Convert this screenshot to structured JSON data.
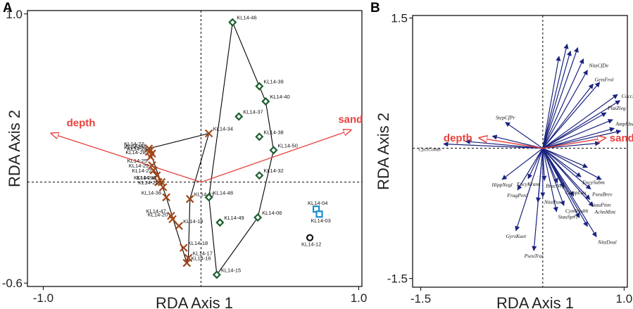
{
  "chart_data": [
    {
      "type": "scatter",
      "panel": "A",
      "xlabel": "RDA Axis 1",
      "ylabel": "RDA Axis 2",
      "xlim": [
        -1.1,
        1.02
      ],
      "ylim": [
        -0.62,
        1.02
      ],
      "xticks": [
        {
          "v": -1.0,
          "label": "-1.0"
        },
        {
          "v": 1.0,
          "label": "1.0"
        }
      ],
      "yticks": [
        {
          "v": 1.0,
          "label": "1.0"
        },
        {
          "v": -0.6,
          "label": "-0.6"
        }
      ],
      "groups": [
        {
          "name": "group-x",
          "marker": "x",
          "color": "#a0481c",
          "points": [
            {
              "label": "KL14-27",
              "x": -0.33,
              "y": 0.2
            },
            {
              "label": "KL14-43",
              "x": -0.32,
              "y": 0.19
            },
            {
              "label": "KL14-45",
              "x": -0.33,
              "y": 0.18
            },
            {
              "label": "KL14-26",
              "x": -0.31,
              "y": 0.17
            },
            {
              "label": "KL14-28",
              "x": -0.32,
              "y": 0.15
            },
            {
              "label": "KL14-25",
              "x": -0.31,
              "y": 0.1
            },
            {
              "label": "KL14-29",
              "x": -0.3,
              "y": 0.07
            },
            {
              "label": "KL14-22",
              "x": -0.28,
              "y": 0.04
            },
            {
              "label": "KL14-30",
              "x": -0.25,
              "y": 0.0
            },
            {
              "label": "KL14-2x",
              "x": -0.27,
              "y": 0.0
            },
            {
              "label": "KL14-21",
              "x": -0.24,
              "y": -0.03
            },
            {
              "label": "KL14-36",
              "x": -0.22,
              "y": -0.09
            },
            {
              "label": "KL14-31",
              "x": -0.07,
              "y": -0.1
            },
            {
              "label": "KL14-47",
              "x": -0.19,
              "y": -0.2
            },
            {
              "label": "KL14-20",
              "x": -0.18,
              "y": -0.22
            },
            {
              "label": "KL14-19",
              "x": -0.14,
              "y": -0.26
            },
            {
              "label": "KL14-18",
              "x": -0.11,
              "y": -0.39
            },
            {
              "label": "KL14-17",
              "x": -0.08,
              "y": -0.45
            },
            {
              "label": "KL14-16",
              "x": -0.09,
              "y": -0.48
            },
            {
              "label": "KL14-34",
              "x": 0.05,
              "y": 0.29
            }
          ]
        },
        {
          "name": "group-diamond",
          "marker": "diamond",
          "color": "#1b5e2e",
          "points": [
            {
              "label": "KL14-46",
              "x": 0.2,
              "y": 0.95
            },
            {
              "label": "KL14-39",
              "x": 0.37,
              "y": 0.57
            },
            {
              "label": "KL14-40",
              "x": 0.41,
              "y": 0.48
            },
            {
              "label": "KL14-37",
              "x": 0.24,
              "y": 0.39
            },
            {
              "label": "KL14-38",
              "x": 0.37,
              "y": 0.27
            },
            {
              "label": "KL14-50",
              "x": 0.46,
              "y": 0.19
            },
            {
              "label": "KL14-32",
              "x": 0.37,
              "y": 0.04
            },
            {
              "label": "KL14-48",
              "x": 0.05,
              "y": -0.09
            },
            {
              "label": "KL14-49",
              "x": 0.12,
              "y": -0.24
            },
            {
              "label": "KL14-06",
              "x": 0.36,
              "y": -0.21
            },
            {
              "label": "KL14-15",
              "x": 0.1,
              "y": -0.55
            }
          ]
        },
        {
          "name": "group-square",
          "marker": "square",
          "color": "#1a8fd1",
          "points": [
            {
              "label": "KL14-04",
              "x": 0.73,
              "y": -0.16
            },
            {
              "label": "KL14-03",
              "x": 0.75,
              "y": -0.19
            }
          ]
        },
        {
          "name": "group-circle",
          "marker": "circle",
          "color": "#111111",
          "points": [
            {
              "label": "KL14-12",
              "x": 0.69,
              "y": -0.33
            }
          ]
        }
      ],
      "hulls": [
        {
          "name": "hull-x",
          "labels": [
            "KL14-34",
            "KL14-31",
            "KL14-17",
            "KL14-16",
            "KL14-36",
            "KL14-27"
          ]
        },
        {
          "name": "hull-diamond",
          "labels": [
            "KL14-46",
            "KL14-40",
            "KL14-50",
            "KL14-06",
            "KL14-15",
            "KL14-48"
          ]
        }
      ],
      "env_vectors": [
        {
          "label": "depth",
          "x": -0.95,
          "y": 0.29
        },
        {
          "label": "sand",
          "x": 0.95,
          "y": 0.31
        }
      ]
    },
    {
      "type": "scatter",
      "panel": "B",
      "xlabel": "RDA Axis 1",
      "ylabel": "RDA Axis 2",
      "xlim": [
        -1.6,
        1.04
      ],
      "ylim": [
        -1.6,
        1.53
      ],
      "xticks": [
        {
          "v": -1.5,
          "label": "-1.5"
        },
        {
          "v": 1.0,
          "label": "1.0"
        }
      ],
      "yticks": [
        {
          "v": 1.5,
          "label": "1.5"
        },
        {
          "v": -1.5,
          "label": "-1.5"
        }
      ],
      "env_vectors": [
        {
          "label": "depth",
          "x": -0.78,
          "y": 0.12
        },
        {
          "label": "sand",
          "x": 0.77,
          "y": 0.12
        }
      ],
      "species_vectors": [
        {
          "label": "NitzCfDe",
          "x": 0.55,
          "y": 0.9
        },
        {
          "label": "GeisFrol",
          "x": 0.62,
          "y": 0.74
        },
        {
          "label": "CoccPlac",
          "x": 0.95,
          "y": 0.55
        },
        {
          "label": "PlatZieg",
          "x": 0.78,
          "y": 0.41
        },
        {
          "label": "AmphInds",
          "x": 0.88,
          "y": 0.23
        },
        {
          "label": "StepCfPr",
          "x": -0.46,
          "y": 0.3
        },
        {
          "label": "CyclComn",
          "x": -1.22,
          "y": 0.05
        },
        {
          "label": "HippNegl",
          "x": -0.5,
          "y": -0.36
        },
        {
          "label": "EncyKram",
          "x": -0.18,
          "y": -0.35
        },
        {
          "label": "FragPerd",
          "x": -0.31,
          "y": -0.48
        },
        {
          "label": "BracNeg",
          "x": 0.02,
          "y": -0.37
        },
        {
          "label": "EncySubm",
          "x": 0.47,
          "y": -0.33
        },
        {
          "label": "PseuBrev",
          "x": 0.59,
          "y": -0.47
        },
        {
          "label": "CampLau",
          "x": 0.26,
          "y": -0.45
        },
        {
          "label": "StauPinn",
          "x": 0.58,
          "y": -0.59
        },
        {
          "label": "AchnMint",
          "x": 0.62,
          "y": -0.67
        },
        {
          "label": "NitzPus",
          "x": 0.0,
          "y": -0.56
        },
        {
          "label": "CymbSubh",
          "x": 0.26,
          "y": -0.66
        },
        {
          "label": "StauSp#1",
          "x": 0.17,
          "y": -0.73
        },
        {
          "label": "GyrsKuet",
          "x": -0.33,
          "y": -0.95
        },
        {
          "label": "PseuTrai",
          "x": -0.11,
          "y": -1.18
        },
        {
          "label": "NitzDeal",
          "x": 0.66,
          "y": -1.02
        }
      ],
      "unlabeled_vectors": [
        {
          "x": 0.3,
          "y": 1.2
        },
        {
          "x": 0.34,
          "y": 1.12
        },
        {
          "x": 0.2,
          "y": 1.06
        },
        {
          "x": 0.43,
          "y": 1.16
        },
        {
          "x": 0.5,
          "y": 1.03
        },
        {
          "x": 0.7,
          "y": 0.76
        },
        {
          "x": 0.92,
          "y": 0.62
        },
        {
          "x": 0.86,
          "y": 0.33
        },
        {
          "x": 0.96,
          "y": 0.2
        },
        {
          "x": 0.7,
          "y": 0.06
        },
        {
          "x": -0.95,
          "y": 0.08
        },
        {
          "x": -0.62,
          "y": 0.14
        },
        {
          "x": 0.55,
          "y": -0.22
        },
        {
          "x": 0.72,
          "y": -0.36
        },
        {
          "x": 0.45,
          "y": -0.8
        },
        {
          "x": 0.55,
          "y": -0.9
        },
        {
          "x": 0.18,
          "y": -0.4
        },
        {
          "x": -0.06,
          "y": -0.62
        },
        {
          "x": 0.38,
          "y": -0.55
        }
      ]
    }
  ],
  "panels": {
    "a": {
      "letter": "A"
    },
    "b": {
      "letter": "B"
    }
  }
}
